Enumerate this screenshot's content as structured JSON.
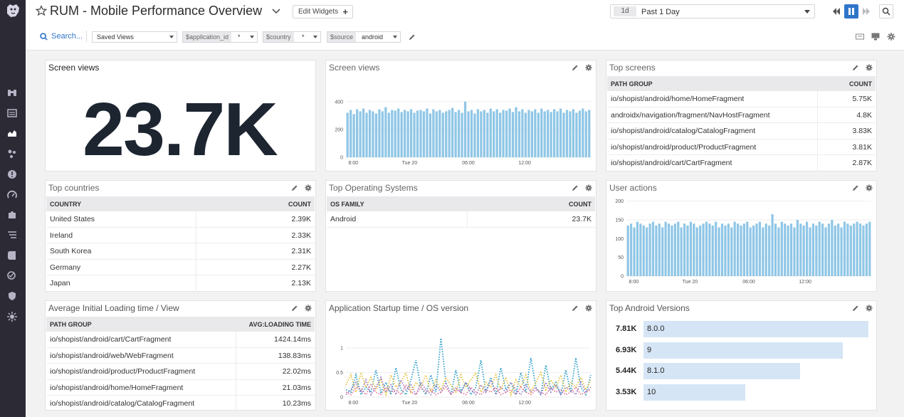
{
  "header": {
    "title": "RUM - Mobile Performance Overview",
    "edit_widgets_label": "Edit Widgets",
    "time_short": "1d",
    "time_label": "Past 1 Day"
  },
  "filters": {
    "search_label": "Search...",
    "saved_views_label": "Saved Views",
    "vars": [
      {
        "name": "$application_id",
        "value": "*"
      },
      {
        "name": "$country",
        "value": "*"
      },
      {
        "name": "$source",
        "value": "android"
      }
    ]
  },
  "widgets": {
    "screen_views_number": {
      "title": "Screen views",
      "value": "23.7K"
    },
    "screen_views_chart": {
      "title": "Screen views"
    },
    "top_screens": {
      "title": "Top screens",
      "columns": [
        "PATH GROUP",
        "COUNT"
      ],
      "rows": [
        [
          "io/shopist/android/home/HomeFragment",
          "5.75K"
        ],
        [
          "androidx/navigation/fragment/NavHostFragment",
          "4.8K"
        ],
        [
          "io/shopist/android/catalog/CatalogFragment",
          "3.83K"
        ],
        [
          "io/shopist/android/product/ProductFragment",
          "3.81K"
        ],
        [
          "io/shopist/android/cart/CartFragment",
          "2.87K"
        ]
      ]
    },
    "top_countries": {
      "title": "Top countries",
      "columns": [
        "COUNTRY",
        "COUNT"
      ],
      "rows": [
        [
          "United States",
          "2.39K"
        ],
        [
          "Ireland",
          "2.33K"
        ],
        [
          "South Korea",
          "2.31K"
        ],
        [
          "Germany",
          "2.27K"
        ],
        [
          "Japan",
          "2.13K"
        ]
      ]
    },
    "top_os": {
      "title": "Top Operating Systems",
      "columns": [
        "OS FAMILY",
        "COUNT"
      ],
      "rows": [
        [
          "Android",
          "23.7K"
        ]
      ]
    },
    "user_actions": {
      "title": "User actions"
    },
    "avg_loading": {
      "title": "Average Initial Loading time / View",
      "columns": [
        "PATH GROUP",
        "AVG:LOADING TIME"
      ],
      "rows": [
        [
          "io/shopist/android/cart/CartFragment",
          "1424.14ms"
        ],
        [
          "io/shopist/android/web/WebFragment",
          "138.83ms"
        ],
        [
          "io/shopist/android/product/ProductFragment",
          "22.02ms"
        ],
        [
          "io/shopist/android/home/HomeFragment",
          "21.03ms"
        ],
        [
          "io/shopist/android/catalog/CatalogFragment",
          "10.23ms"
        ]
      ]
    },
    "startup_time": {
      "title": "Application Startup time / OS version"
    },
    "android_versions": {
      "title": "Top Android Versions",
      "rows": [
        {
          "value": "7.81K",
          "label": "8.0.0",
          "fraction": 1.0
        },
        {
          "value": "6.93K",
          "label": "9",
          "fraction": 0.887
        },
        {
          "value": "5.44K",
          "label": "8.1.0",
          "fraction": 0.697
        },
        {
          "value": "3.53K",
          "label": "10",
          "fraction": 0.452
        }
      ],
      "bar_color": "#d5e5f5"
    }
  },
  "chart_data": [
    {
      "type": "bar",
      "name": "Screen views",
      "x_ticks": [
        "8:00",
        "Tue 20",
        "06:00",
        "12:00"
      ],
      "y_ticks": [
        0,
        200,
        400
      ],
      "ylim": [
        0,
        450
      ],
      "color": "#8fc6e6",
      "values": [
        320,
        340,
        310,
        345,
        330,
        350,
        320,
        340,
        330,
        315,
        345,
        330,
        360,
        320,
        340,
        335,
        350,
        325,
        340,
        330,
        345,
        320,
        335,
        340,
        330,
        350,
        315,
        345,
        330,
        340,
        320,
        330,
        340,
        355,
        325,
        340,
        320,
        400,
        330,
        340,
        315,
        345,
        330,
        340,
        320,
        350,
        330,
        345,
        320,
        340,
        335,
        350,
        325,
        360,
        330,
        345,
        320,
        340,
        330,
        345,
        320,
        350,
        330,
        340,
        325,
        345,
        330,
        350,
        320,
        340,
        330,
        345,
        320,
        335,
        350,
        330,
        340
      ]
    },
    {
      "type": "bar",
      "name": "User actions",
      "x_ticks": [
        "8:00",
        "Tue 20",
        "06:00",
        "12:00"
      ],
      "y_ticks": [
        0,
        50,
        100,
        150,
        200
      ],
      "ylim": [
        0,
        205
      ],
      "color": "#8fc6e6",
      "values": [
        135,
        140,
        130,
        145,
        140,
        135,
        130,
        140,
        145,
        135,
        140,
        130,
        145,
        140,
        135,
        140,
        145,
        130,
        140,
        135,
        145,
        140,
        130,
        135,
        140,
        145,
        140,
        135,
        145,
        130,
        140,
        135,
        140,
        130,
        145,
        140,
        135,
        140,
        145,
        130,
        135,
        140,
        145,
        130,
        140,
        135,
        165,
        140,
        130,
        145,
        140,
        135,
        140,
        130,
        150,
        140,
        135,
        145,
        130,
        140,
        135,
        145,
        140,
        130,
        140,
        150,
        135,
        140,
        130,
        145,
        140,
        135,
        140,
        145,
        140,
        135,
        140,
        145
      ]
    },
    {
      "type": "line",
      "name": "Application Startup time / OS version",
      "x_ticks": [
        "8:00",
        "Tue 20",
        "06:00",
        "12:00"
      ],
      "y_ticks": [
        0,
        0.5,
        1
      ],
      "ylim": [
        0,
        1.35
      ],
      "series": [
        {
          "color": "#2a9ec9",
          "values": [
            0.15,
            0.1,
            0.45,
            0.05,
            0.2,
            0.1,
            0.55,
            0.1,
            0.3,
            0.05,
            0.6,
            0.15,
            0.05,
            0.35,
            0.75,
            0.2,
            0.05,
            0.45,
            0.1,
            1.2,
            0.3,
            0.05,
            0.55,
            0.1,
            0.3,
            0.05,
            0.2,
            0.75,
            0.1,
            0.4,
            0.05,
            0.6,
            0.15,
            0.3,
            0.05,
            0.5,
            0.1,
            0.8,
            0.2,
            0.05,
            0.65,
            0.15,
            0.3,
            0.05,
            0.55,
            0.1,
            0.8,
            0.2,
            0.05,
            0.45
          ]
        },
        {
          "color": "#e6c23a",
          "values": [
            0.25,
            0.45,
            0.1,
            0.5,
            0.2,
            0.4,
            0.15,
            0.35,
            0.05,
            0.45,
            0.2,
            0.3,
            0.5,
            0.1,
            0.3,
            0.2,
            0.45,
            0.1,
            0.35,
            0.15,
            0.4,
            0.25,
            0.1,
            0.45,
            0.2,
            0.35,
            0.5,
            0.1,
            0.3,
            0.2,
            0.45,
            0.15,
            0.4,
            0.05,
            0.35,
            0.2,
            0.45,
            0.1,
            0.3,
            0.5,
            0.15,
            0.35,
            0.2,
            0.45,
            0.1,
            0.3,
            0.2,
            0.4,
            0.15,
            0.35
          ]
        },
        {
          "color": "#9b7fc6",
          "values": [
            0.05,
            0.15,
            0.3,
            0.1,
            0.35,
            0.05,
            0.2,
            0.4,
            0.1,
            0.25,
            0.05,
            0.35,
            0.15,
            0.25,
            0.05,
            0.3,
            0.15,
            0.05,
            0.25,
            0.1,
            0.3,
            0.05,
            0.2,
            0.1,
            0.3,
            0.15,
            0.05,
            0.25,
            0.1,
            0.35,
            0.05,
            0.2,
            0.1,
            0.3,
            0.15,
            0.05,
            0.25,
            0.1,
            0.2,
            0.05,
            0.3,
            0.1,
            0.25,
            0.05,
            0.2,
            0.15,
            0.05,
            0.3,
            0.1,
            0.2
          ]
        },
        {
          "color": "#e07a9a",
          "values": [
            0.1,
            0.05,
            0.2,
            0.15,
            0.05,
            0.25,
            0.1,
            0.05,
            0.2,
            0.1,
            0.15,
            0.05,
            0.25,
            0.1,
            0.05,
            0.2,
            0.1,
            0.15,
            0.05,
            0.1,
            0.2,
            0.05,
            0.15,
            0.1,
            0.05,
            0.2,
            0.1,
            0.05,
            0.15,
            0.1,
            0.2,
            0.05,
            0.1,
            0.15,
            0.05,
            0.2,
            0.1,
            0.05,
            0.15,
            0.1,
            0.05,
            0.2,
            0.1,
            0.15,
            0.05,
            0.1,
            0.2,
            0.05,
            0.1,
            0.15
          ]
        }
      ]
    },
    {
      "type": "bar",
      "name": "Top Android Versions",
      "categories": [
        "8.0.0",
        "9",
        "8.1.0",
        "10"
      ],
      "values": [
        7810,
        6930,
        5440,
        3530
      ]
    }
  ]
}
